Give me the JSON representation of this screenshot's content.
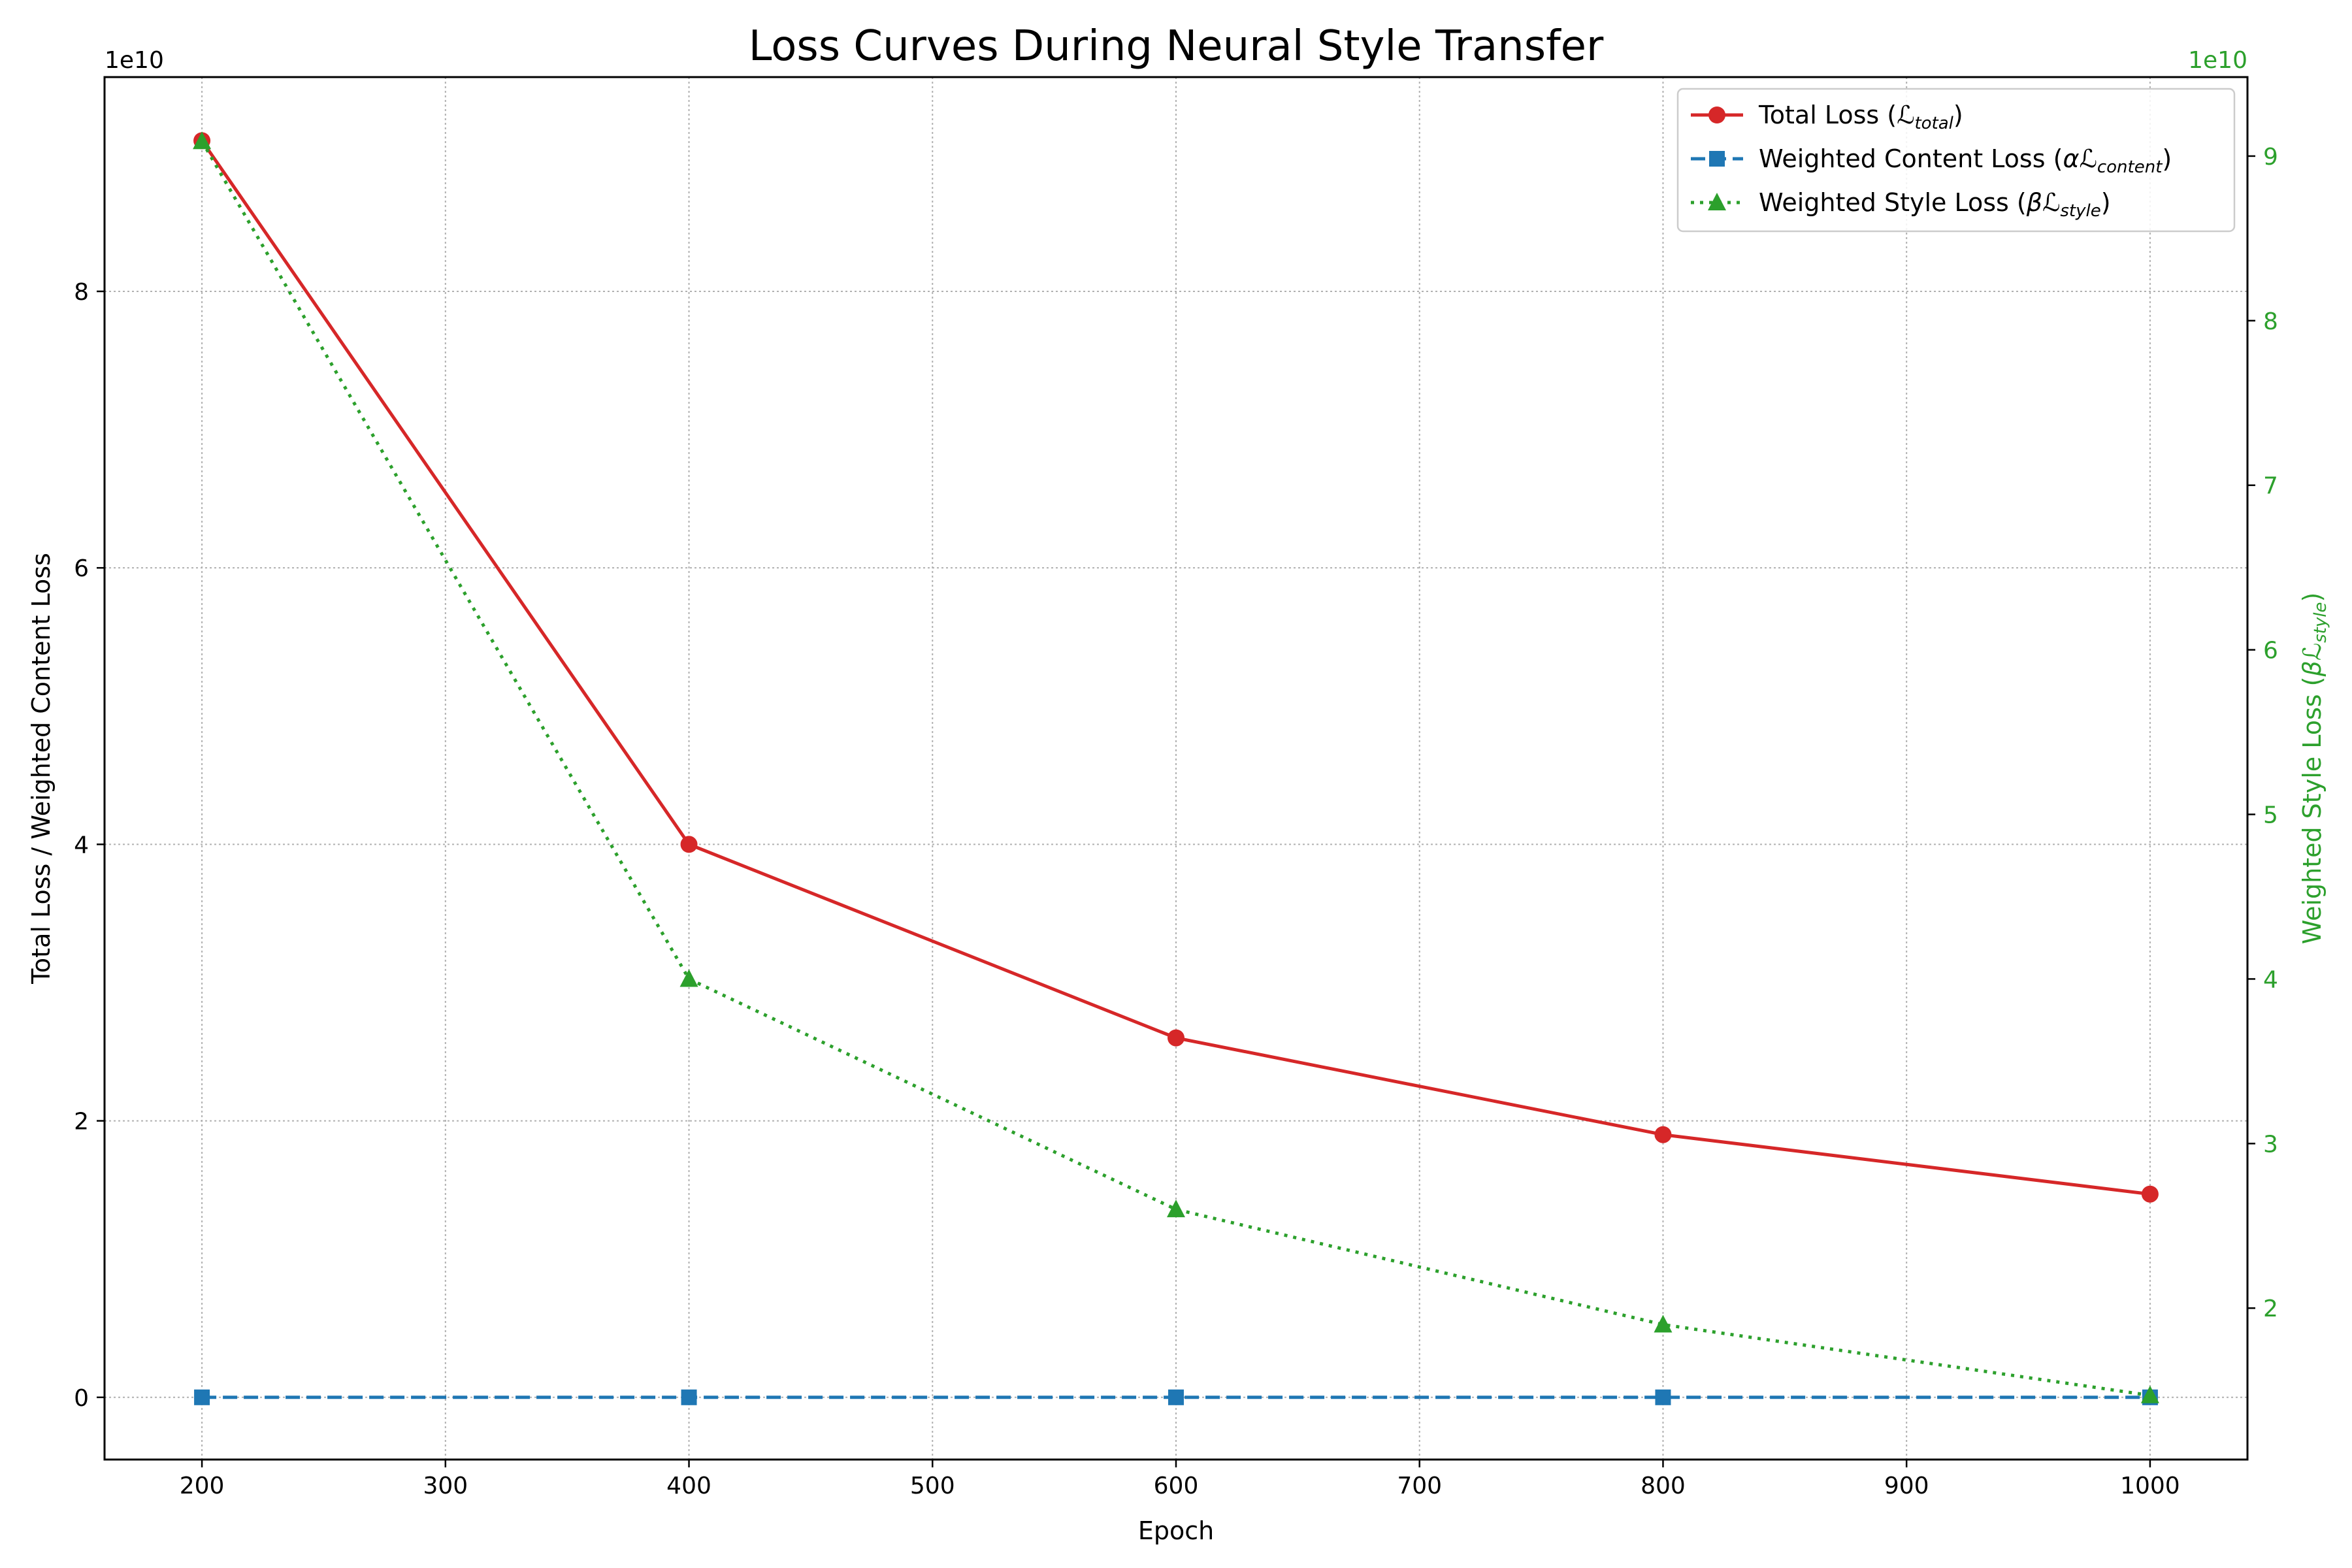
{
  "chart_data": {
    "type": "line",
    "title": "Loss Curves During Neural Style Transfer",
    "xlabel": "Epoch",
    "ylabel_left": "Total Loss / Weighted Content Loss",
    "ylabel_right_prefix": "Weighted Style Loss (",
    "ylabel_right_symbol": "βℒ",
    "ylabel_right_sub": "style",
    "ylabel_right_suffix": ")",
    "left_offset_label": "1e10",
    "right_offset_label": "1e10",
    "x": [
      200,
      400,
      600,
      800,
      1000
    ],
    "xlim": [
      160,
      1040
    ],
    "xticks": [
      "200",
      "300",
      "400",
      "500",
      "600",
      "700",
      "800",
      "900",
      "1000"
    ],
    "ylim_left": [
      -0.45,
      9.55
    ],
    "yticks_left": [
      "0",
      "2",
      "4",
      "6",
      "8"
    ],
    "ylim_right": [
      1.08,
      9.48
    ],
    "yticks_right": [
      "2",
      "3",
      "4",
      "5",
      "6",
      "7",
      "8",
      "9"
    ],
    "grid": true,
    "legend_position": "upper right",
    "series": [
      {
        "name": "Total Loss (ℒ_total)",
        "legend_main": "Total Loss (",
        "legend_symbol": "ℒ",
        "legend_sub": "total",
        "legend_end": ")",
        "axis": "left",
        "values": [
          9.09,
          4.0,
          2.6,
          1.9,
          1.47
        ],
        "color": "#d62728",
        "style": "solid",
        "marker": "circle"
      },
      {
        "name": "Weighted Content Loss (αℒ_content)",
        "legend_main": "Weighted Content Loss (",
        "legend_symbol": "αℒ",
        "legend_sub": "content",
        "legend_end": ")",
        "axis": "left",
        "values": [
          0.0,
          0.0,
          0.0,
          0.0,
          0.0
        ],
        "color": "#1f77b4",
        "style": "dashed",
        "marker": "square"
      },
      {
        "name": "Weighted Style Loss (βℒ_style)",
        "legend_main": "Weighted Style Loss (",
        "legend_symbol": "βℒ",
        "legend_sub": "style",
        "legend_end": ")",
        "axis": "right",
        "values": [
          9.09,
          4.0,
          2.6,
          1.9,
          1.47
        ],
        "color": "#2ca02c",
        "style": "dotted",
        "marker": "triangle"
      }
    ]
  }
}
